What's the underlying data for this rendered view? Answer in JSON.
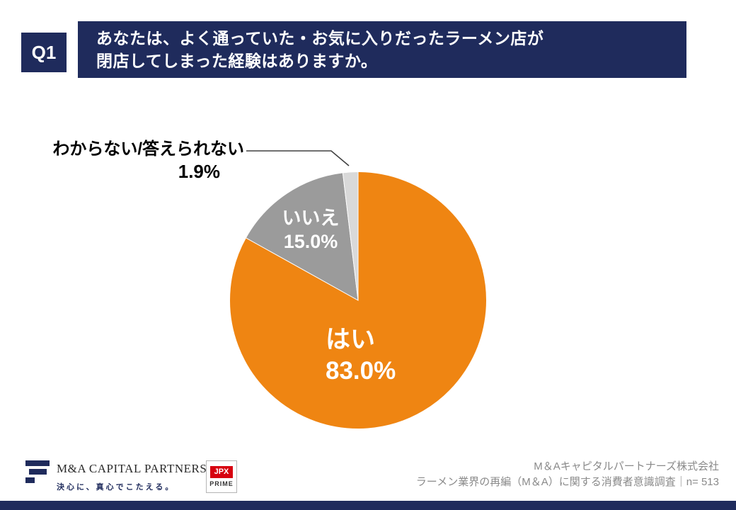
{
  "header": {
    "q_label": "Q1",
    "title_line1": "あなたは、よく通っていた・お気に入りだったラーメン店が",
    "title_line2": "閉店してしまった経験はありますか。"
  },
  "chart_data": {
    "type": "pie",
    "title": "",
    "categories": [
      "はい",
      "いいえ",
      "わからない/答えられない"
    ],
    "values": [
      83.0,
      15.0,
      1.9
    ],
    "unit": "%",
    "start_angle_deg": 0,
    "direction": "clockwise",
    "legend_position": "none",
    "labels_on_slices": true,
    "slices": [
      {
        "key": "yes",
        "label": "はい",
        "value": 83.0,
        "display_value": "83.0%",
        "color": "#ef8512",
        "label_color": "#ffffff"
      },
      {
        "key": "no",
        "label": "いいえ",
        "value": 15.0,
        "display_value": "15.0%",
        "color": "#9b9b9b",
        "label_color": "#ffffff"
      },
      {
        "key": "unknown",
        "label": "わからない/答えられない",
        "value": 1.9,
        "display_value": "1.9%",
        "color": "#d9d9d9",
        "label_color": "#000000"
      }
    ]
  },
  "footer": {
    "logo_name": "M&A CAPITAL PARTNERS",
    "logo_tagline": "決心に、真心でこたえる。",
    "jpx_top": "JPX",
    "jpx_bottom": "PRIME",
    "credit_line1": "M＆Aキャピタルパートナーズ株式会社",
    "credit_line2": "ラーメン業界の再編（M＆A）に関する消費者意識調査｜n= 513"
  },
  "colors": {
    "navy": "#1f2b5c",
    "orange": "#ef8512",
    "gray": "#9b9b9b",
    "light_gray": "#d9d9d9",
    "leader_line": "#404040",
    "credit_text": "#8a8a8a",
    "jpx_red": "#d7000f"
  }
}
